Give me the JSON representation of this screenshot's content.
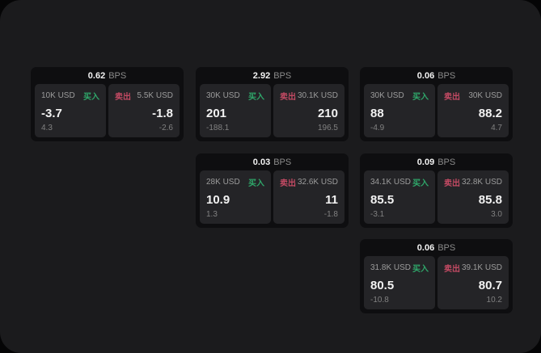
{
  "labels": {
    "buy": "买入",
    "sell": "卖出",
    "bps_unit": "BPS"
  },
  "colors": {
    "buy_green": "#2fa76a",
    "sell_red": "#c24a63",
    "window_bg": "#1b1b1d",
    "card_bg": "#0e0e10",
    "panel_bg": "#242427",
    "value_text": "#f2f2f2",
    "muted_text": "#9c9c9c",
    "faint_text": "#818181"
  },
  "cards": [
    {
      "bps": "0.62",
      "buy": {
        "amount": "10K USD",
        "price": "-3.7",
        "delta": "4.3"
      },
      "sell": {
        "amount": "5.5K USD",
        "price": "-1.8",
        "delta": "-2.6"
      }
    },
    {
      "bps": "2.92",
      "buy": {
        "amount": "30K USD",
        "price": "201",
        "delta": "-188.1"
      },
      "sell": {
        "amount": "30.1K USD",
        "price": "210",
        "delta": "196.5"
      }
    },
    {
      "bps": "0.06",
      "buy": {
        "amount": "30K USD",
        "price": "88",
        "delta": "-4.9"
      },
      "sell": {
        "amount": "30K USD",
        "price": "88.2",
        "delta": "4.7"
      }
    },
    {
      "bps": "0.03",
      "buy": {
        "amount": "28K USD",
        "price": "10.9",
        "delta": "1.3"
      },
      "sell": {
        "amount": "32.6K USD",
        "price": "11",
        "delta": "-1.8"
      }
    },
    {
      "bps": "0.09",
      "buy": {
        "amount": "34.1K USD",
        "price": "85.5",
        "delta": "-3.1"
      },
      "sell": {
        "amount": "32.8K USD",
        "price": "85.8",
        "delta": "3.0"
      }
    },
    {
      "bps": "0.06",
      "buy": {
        "amount": "31.8K USD",
        "price": "80.5",
        "delta": "-10.8"
      },
      "sell": {
        "amount": "39.1K USD",
        "price": "80.7",
        "delta": "10.2"
      }
    }
  ]
}
